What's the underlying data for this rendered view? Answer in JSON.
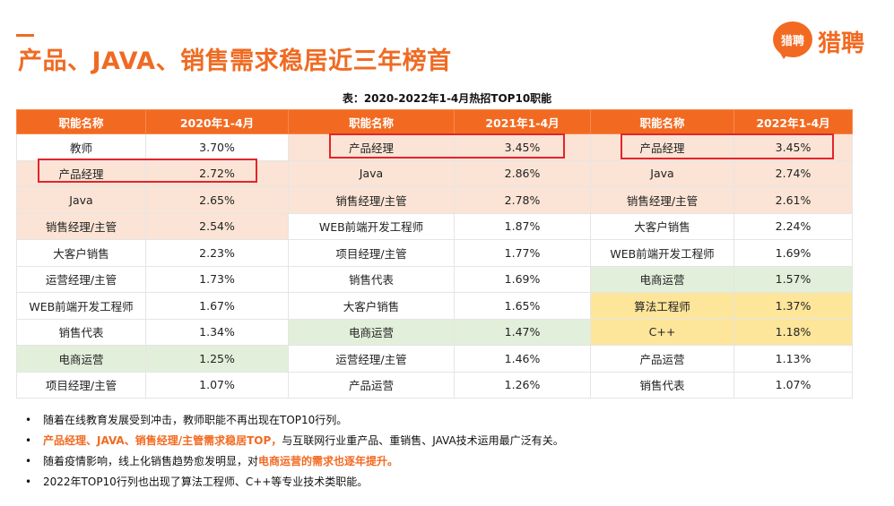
{
  "title": "产品、JAVA、销售需求稳居近三年榜首",
  "logo": {
    "badge": "猎聘",
    "text": "猎聘",
    "color": "#f26a21"
  },
  "caption": "表：2020-2022年1-4月热招TOP10职能",
  "table": {
    "headers": [
      "职能名称",
      "2020年1-4月",
      "职能名称",
      "2021年1-4月",
      "职能名称",
      "2022年1-4月"
    ],
    "rows": [
      [
        "教师",
        "3.70%",
        "产品经理",
        "3.45%",
        "产品经理",
        "3.45%"
      ],
      [
        "产品经理",
        "2.72%",
        "Java",
        "2.86%",
        "Java",
        "2.74%"
      ],
      [
        "Java",
        "2.65%",
        "销售经理/主管",
        "2.78%",
        "销售经理/主管",
        "2.61%"
      ],
      [
        "销售经理/主管",
        "2.54%",
        "WEB前端开发工程师",
        "1.87%",
        "大客户销售",
        "2.24%"
      ],
      [
        "大客户销售",
        "2.23%",
        "项目经理/主管",
        "1.77%",
        "WEB前端开发工程师",
        "1.69%"
      ],
      [
        "运营经理/主管",
        "1.73%",
        "销售代表",
        "1.69%",
        "电商运营",
        "1.57%"
      ],
      [
        "WEB前端开发工程师",
        "1.67%",
        "大客户销售",
        "1.65%",
        "算法工程师",
        "1.37%"
      ],
      [
        "销售代表",
        "1.34%",
        "电商运营",
        "1.47%",
        "C++",
        "1.18%"
      ],
      [
        "电商运营",
        "1.25%",
        "运营经理/主管",
        "1.46%",
        "产品运营",
        "1.13%"
      ],
      [
        "项目经理/主管",
        "1.07%",
        "产品运营",
        "1.26%",
        "销售代表",
        "1.07%"
      ]
    ],
    "highlight_colors": {
      "header": "#f26a21",
      "peach": "#fbe4d5",
      "green": "#e2efda",
      "yellow": "#fde59a",
      "redbox": "#e3242b"
    }
  },
  "notes": [
    {
      "parts": [
        {
          "text": "随着在线教育发展受到冲击，教师职能不再出现在TOP10行列。",
          "hl": false
        }
      ]
    },
    {
      "parts": [
        {
          "text": "产品经理、JAVA、销售经理/主管需求稳居TOP，",
          "hl": true
        },
        {
          "text": "与互联网行业重产品、重销售、JAVA技术运用最广泛有关。",
          "hl": false
        }
      ]
    },
    {
      "parts": [
        {
          "text": "随着疫情影响，线上化销售趋势愈发明显，对",
          "hl": false
        },
        {
          "text": "电商运营的需求也逐年提升。",
          "hl": true
        }
      ]
    },
    {
      "parts": [
        {
          "text": "2022年TOP10行列也出现了算法工程师、C++等专业技术类职能。",
          "hl": false
        }
      ]
    }
  ]
}
